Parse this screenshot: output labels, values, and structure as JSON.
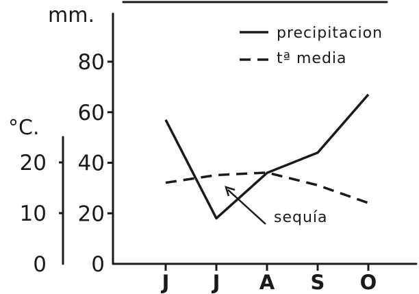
{
  "chart_data": {
    "type": "line",
    "categories": [
      "J",
      "J",
      "A",
      "S",
      "O"
    ],
    "y_left_unit": "°C.",
    "y_right_unit": "mm.",
    "y_temp_ticks": [
      "20",
      "10",
      "0"
    ],
    "y_precip_ticks": [
      "80",
      "60",
      "40",
      "20",
      "0"
    ],
    "y_temp_range": [
      0,
      20
    ],
    "y_precip_range": [
      0,
      80
    ],
    "series": [
      {
        "name": "precipitacion",
        "axis": "mm",
        "style": "solid",
        "values": [
          57,
          18,
          36,
          44,
          67
        ]
      },
      {
        "name": "tª media",
        "axis": "°C",
        "style": "dashed",
        "values": [
          16,
          17.5,
          18,
          15.5,
          12
        ]
      }
    ],
    "legend": {
      "position": "top-right",
      "items": [
        "precipitacion",
        "tª media"
      ]
    },
    "annotation": "sequía",
    "grid": false
  }
}
